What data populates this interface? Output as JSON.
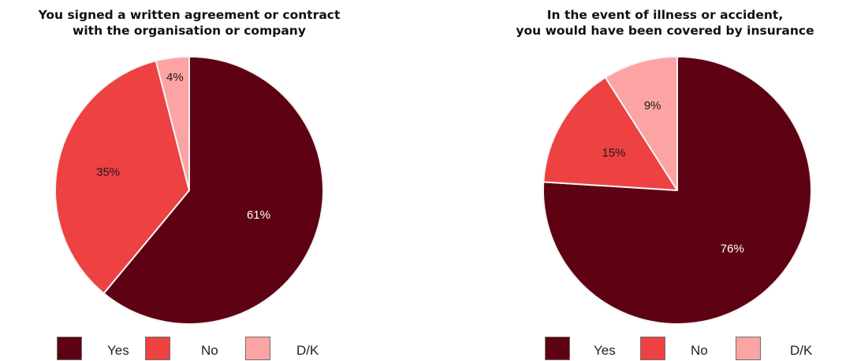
{
  "chart_data": [
    {
      "type": "pie",
      "title": "You signed a written agreement or contract\nwith the organisation or company",
      "slices": [
        {
          "label": "Yes",
          "value": 61,
          "display": "61%",
          "color": "#5e0213"
        },
        {
          "label": "No",
          "value": 35,
          "display": "35%",
          "color": "#ed4142"
        },
        {
          "label": "D/K",
          "value": 4,
          "display": "4%",
          "color": "#fca3a3"
        }
      ],
      "start_angle_deg": 0,
      "direction": "clockwise",
      "legend_position": "bottom"
    },
    {
      "type": "pie",
      "title": "In the event of illness or accident,\nyou would have been covered by insurance",
      "slices": [
        {
          "label": "Yes",
          "value": 76,
          "display": "76%",
          "color": "#5e0213"
        },
        {
          "label": "No",
          "value": 15,
          "display": "15%",
          "color": "#ed4142"
        },
        {
          "label": "D/K",
          "value": 9,
          "display": "9%",
          "color": "#fca3a3"
        }
      ],
      "start_angle_deg": 0,
      "direction": "clockwise",
      "legend_position": "bottom"
    }
  ]
}
